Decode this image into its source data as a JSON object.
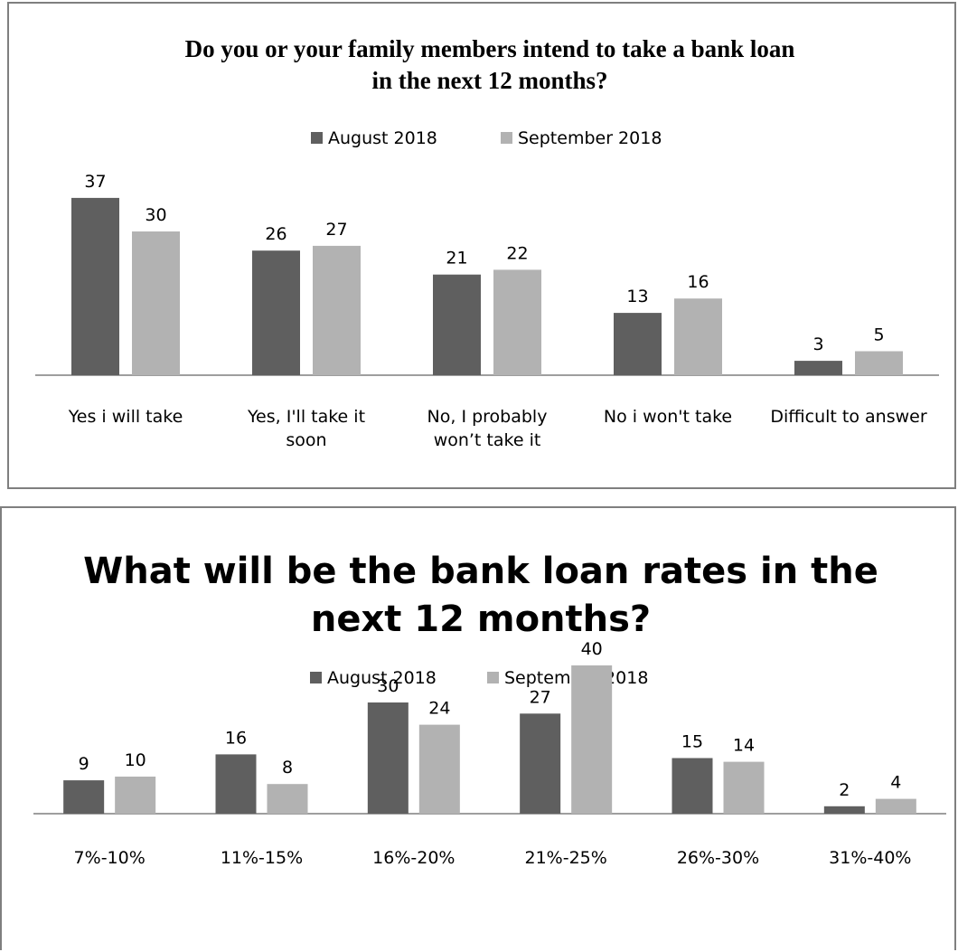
{
  "colors": {
    "august": "#5f5f5f",
    "september": "#b2b2b2",
    "axis": "#7f7f7f"
  },
  "chart_data": [
    {
      "type": "bar",
      "title_lines": [
        "Do you or your family members intend to take a bank loan",
        "in the next 12 months?"
      ],
      "legend": [
        "August 2018",
        "September 2018"
      ],
      "legend_position": "top",
      "categories": [
        [
          "Yes i will take"
        ],
        [
          "Yes, I'll take it",
          "soon"
        ],
        [
          "No, I probably",
          "won’t take it"
        ],
        [
          "No i won't take"
        ],
        [
          "Difficult to answer"
        ]
      ],
      "series": [
        {
          "name": "August 2018",
          "values": [
            37,
            26,
            21,
            13,
            3
          ]
        },
        {
          "name": "September 2018",
          "values": [
            30,
            27,
            22,
            16,
            5
          ]
        }
      ],
      "ylim": [
        0,
        40
      ],
      "grid": false
    },
    {
      "type": "bar",
      "title_lines": [
        "What will be the bank loan rates in the",
        "next 12 months?"
      ],
      "legend": [
        "August 2018",
        "September 2018"
      ],
      "legend_position": "top",
      "categories": [
        [
          "7%-10%"
        ],
        [
          "11%-15%"
        ],
        [
          "16%-20%"
        ],
        [
          "21%-25%"
        ],
        [
          "26%-30%"
        ],
        [
          "31%-40%"
        ]
      ],
      "series": [
        {
          "name": "August 2018",
          "values": [
            9,
            16,
            30,
            27,
            15,
            2
          ]
        },
        {
          "name": "September 2018",
          "values": [
            10,
            8,
            24,
            40,
            14,
            4
          ]
        }
      ],
      "ylim": [
        0,
        45
      ],
      "grid": false
    }
  ]
}
